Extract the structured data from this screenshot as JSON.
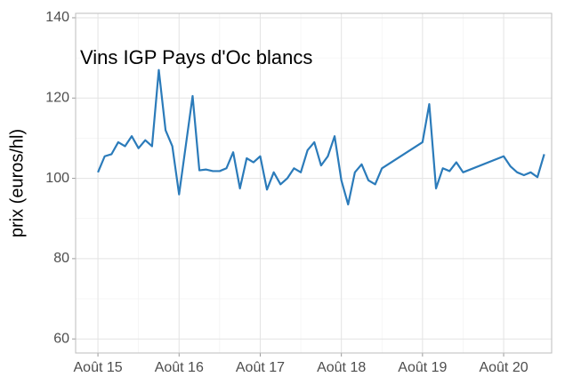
{
  "chart_data": {
    "type": "line",
    "title": "Vins IGP Pays d'Oc blancs",
    "y_label": "prix (euros/hl)",
    "x": [
      0,
      1,
      2,
      3,
      4,
      5,
      6,
      7,
      8,
      9,
      10,
      11,
      12,
      14,
      15,
      16,
      17,
      18,
      19,
      20,
      21,
      22,
      23,
      24,
      25,
      26,
      27,
      28,
      29,
      30,
      31,
      32,
      33,
      34,
      35,
      36,
      37,
      38,
      39,
      40,
      41,
      42,
      48,
      49,
      50,
      51,
      52,
      53,
      54,
      60,
      61,
      62,
      63,
      64,
      65,
      66
    ],
    "series": [
      {
        "name": "Vins IGP Pays d'Oc blancs",
        "color": "#2b7bba",
        "values": [
          101.5,
          105.5,
          106,
          109,
          108,
          110.5,
          107.5,
          109.5,
          108,
          127,
          112,
          108,
          96,
          120.5,
          102,
          102.2,
          101.8,
          101.8,
          102.5,
          106.5,
          97.5,
          105,
          104,
          105.5,
          97.2,
          101.5,
          98.5,
          100,
          102.5,
          101.5,
          107,
          109,
          103.2,
          105.5,
          110.5,
          99.5,
          93.5,
          101.5,
          103.5,
          99.5,
          98.5,
          102.5,
          109,
          118.5,
          97.5,
          102.5,
          101.8,
          104,
          101.5,
          105.5,
          103,
          101.5,
          100.8,
          101.5,
          100.3,
          106
        ]
      }
    ],
    "xlim": [
      -3.3,
      67.1
    ],
    "xticks": [
      {
        "value": 0,
        "label": "Août 15"
      },
      {
        "value": 12,
        "label": "Août 16"
      },
      {
        "value": 24,
        "label": "Août 17"
      },
      {
        "value": 36,
        "label": "Août 18"
      },
      {
        "value": 48,
        "label": "Août 19"
      },
      {
        "value": 60,
        "label": "Août 20"
      }
    ],
    "ylim": [
      56.5,
      141.1
    ],
    "yticks": [
      60,
      80,
      100,
      120,
      140
    ],
    "grid": true
  }
}
